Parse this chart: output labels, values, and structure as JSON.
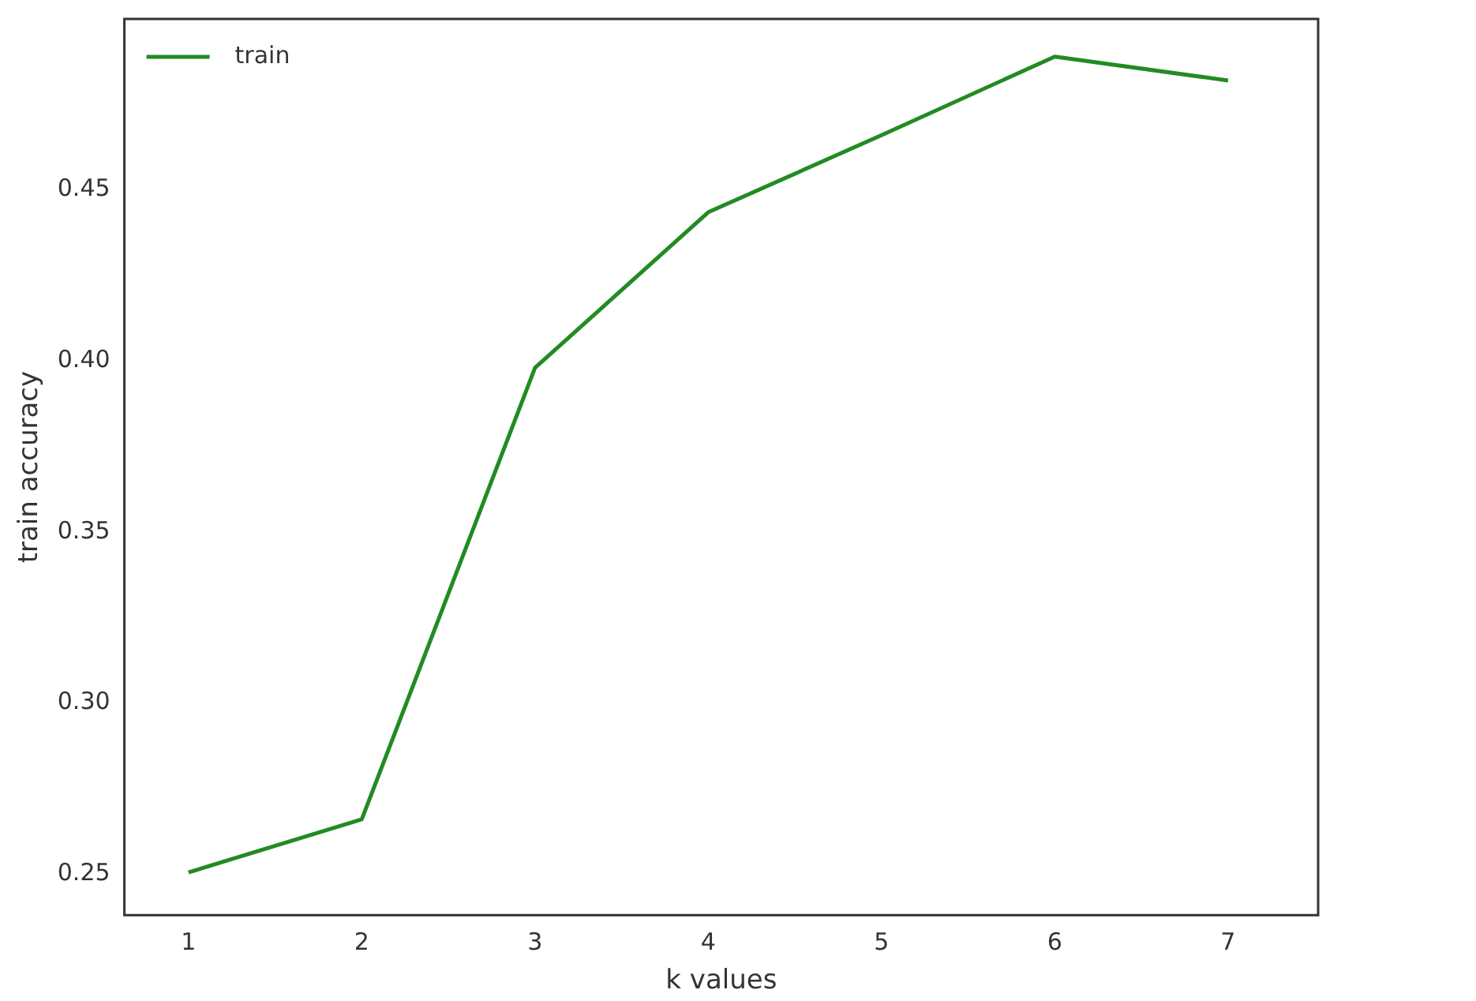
{
  "chart_data": {
    "type": "line",
    "xlabel": "k values",
    "ylabel": "train accuracy",
    "x": [
      1,
      2,
      3,
      4,
      5,
      6,
      7
    ],
    "series": [
      {
        "name": "train",
        "color": "#228b22",
        "values": [
          0.2505,
          0.266,
          0.398,
          0.4435,
          0.466,
          0.489,
          0.482
        ]
      }
    ],
    "xlim": [
      0.63,
      7.52
    ],
    "xticks": [
      1,
      2,
      3,
      4,
      5,
      6,
      7
    ],
    "ylim": [
      0.238,
      0.5
    ],
    "yticks": [
      {
        "value": 0.25,
        "label": "0.25"
      },
      {
        "value": 0.3,
        "label": "0.30"
      },
      {
        "value": 0.35,
        "label": "0.35"
      },
      {
        "value": 0.4,
        "label": "0.40"
      },
      {
        "value": 0.45,
        "label": "0.45"
      }
    ],
    "grid": false,
    "legend": "top left",
    "marker": "none",
    "line_style": "solid"
  }
}
